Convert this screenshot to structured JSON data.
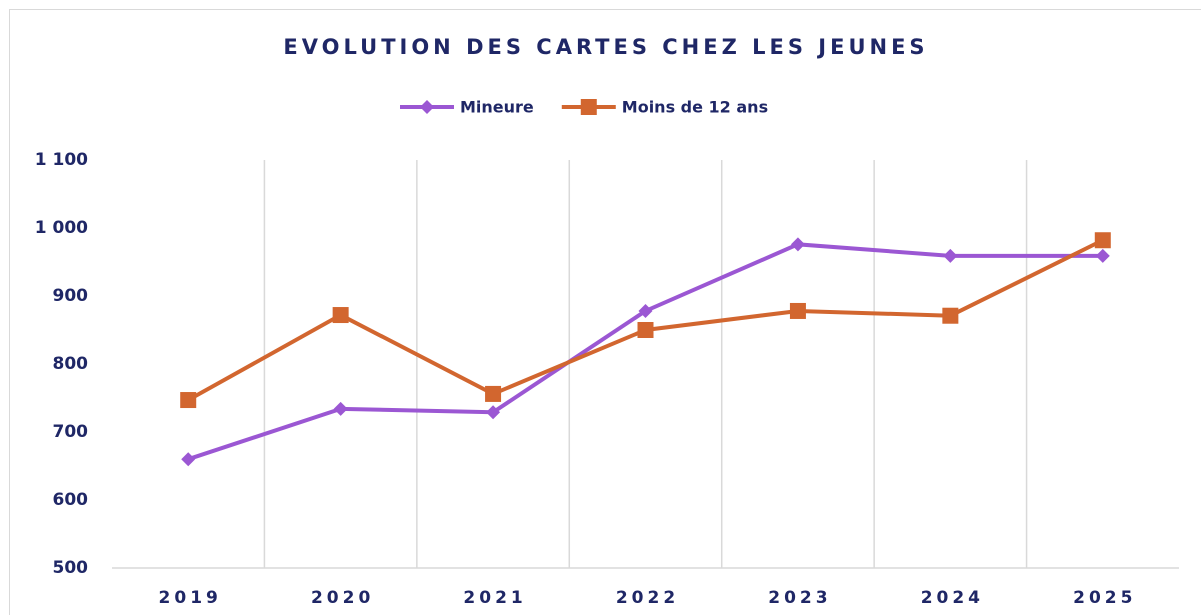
{
  "chart_data": {
    "type": "line",
    "title": "EVOLUTION DES CARTES CHEZ LES JEUNES",
    "categories": [
      "2019",
      "2020",
      "2021",
      "2022",
      "2023",
      "2024",
      "2025"
    ],
    "series": [
      {
        "name": "Mineure",
        "color": "#9b57d3",
        "marker": "diamond",
        "values": [
          660,
          734,
          729,
          878,
          976,
          959,
          959
        ]
      },
      {
        "name": "Moins de 12 ans",
        "color": "#d2662f",
        "marker": "square",
        "values": [
          747,
          872,
          756,
          850,
          878,
          871,
          982
        ]
      }
    ],
    "ylim": [
      500,
      1100
    ],
    "yticks": [
      500,
      600,
      700,
      800,
      900,
      {
        "value": 1000,
        "label": "1 000"
      },
      {
        "value": 1100,
        "label": "1 100"
      }
    ],
    "grid": true,
    "legend": "top"
  }
}
